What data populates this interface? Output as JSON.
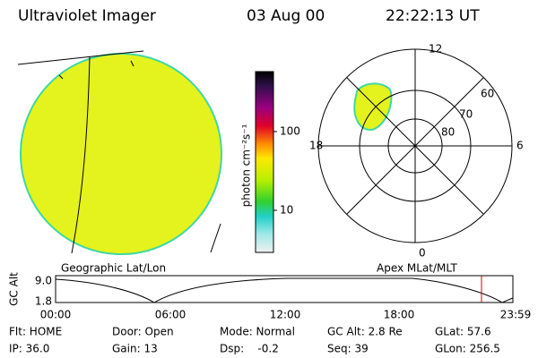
{
  "header": {
    "title": "Ultraviolet Imager",
    "date": "03 Aug 00",
    "time": "22:22:13 UT"
  },
  "colorbar": {
    "label": "photon cm⁻²s⁻¹",
    "ticks": [
      "100",
      "10"
    ]
  },
  "polar": {
    "mlt_labels": [
      "12",
      "18",
      "6",
      "0"
    ],
    "lat_labels": [
      "60",
      "70",
      "80"
    ]
  },
  "panels": {
    "left": "Geographic Lat/Lon",
    "right": "Apex MLat/MLT"
  },
  "altitude_plot": {
    "axis_label": "GC Alt",
    "y_labels": [
      "9.0",
      "1.8"
    ],
    "time_labels": [
      "00:00",
      "06:00",
      "12:00",
      "18:00",
      "23:59"
    ]
  },
  "status": {
    "rows": [
      [
        "Flt: HOME",
        "Door: Open",
        "Mode: Normal",
        "GC Alt: 2.8 Re",
        "GLat: 57.6"
      ],
      [
        "IP: 36.0",
        "Gain: 13",
        "Dsp:    -0.2",
        "Seq: 39",
        "GLon: 256.5"
      ]
    ]
  }
}
